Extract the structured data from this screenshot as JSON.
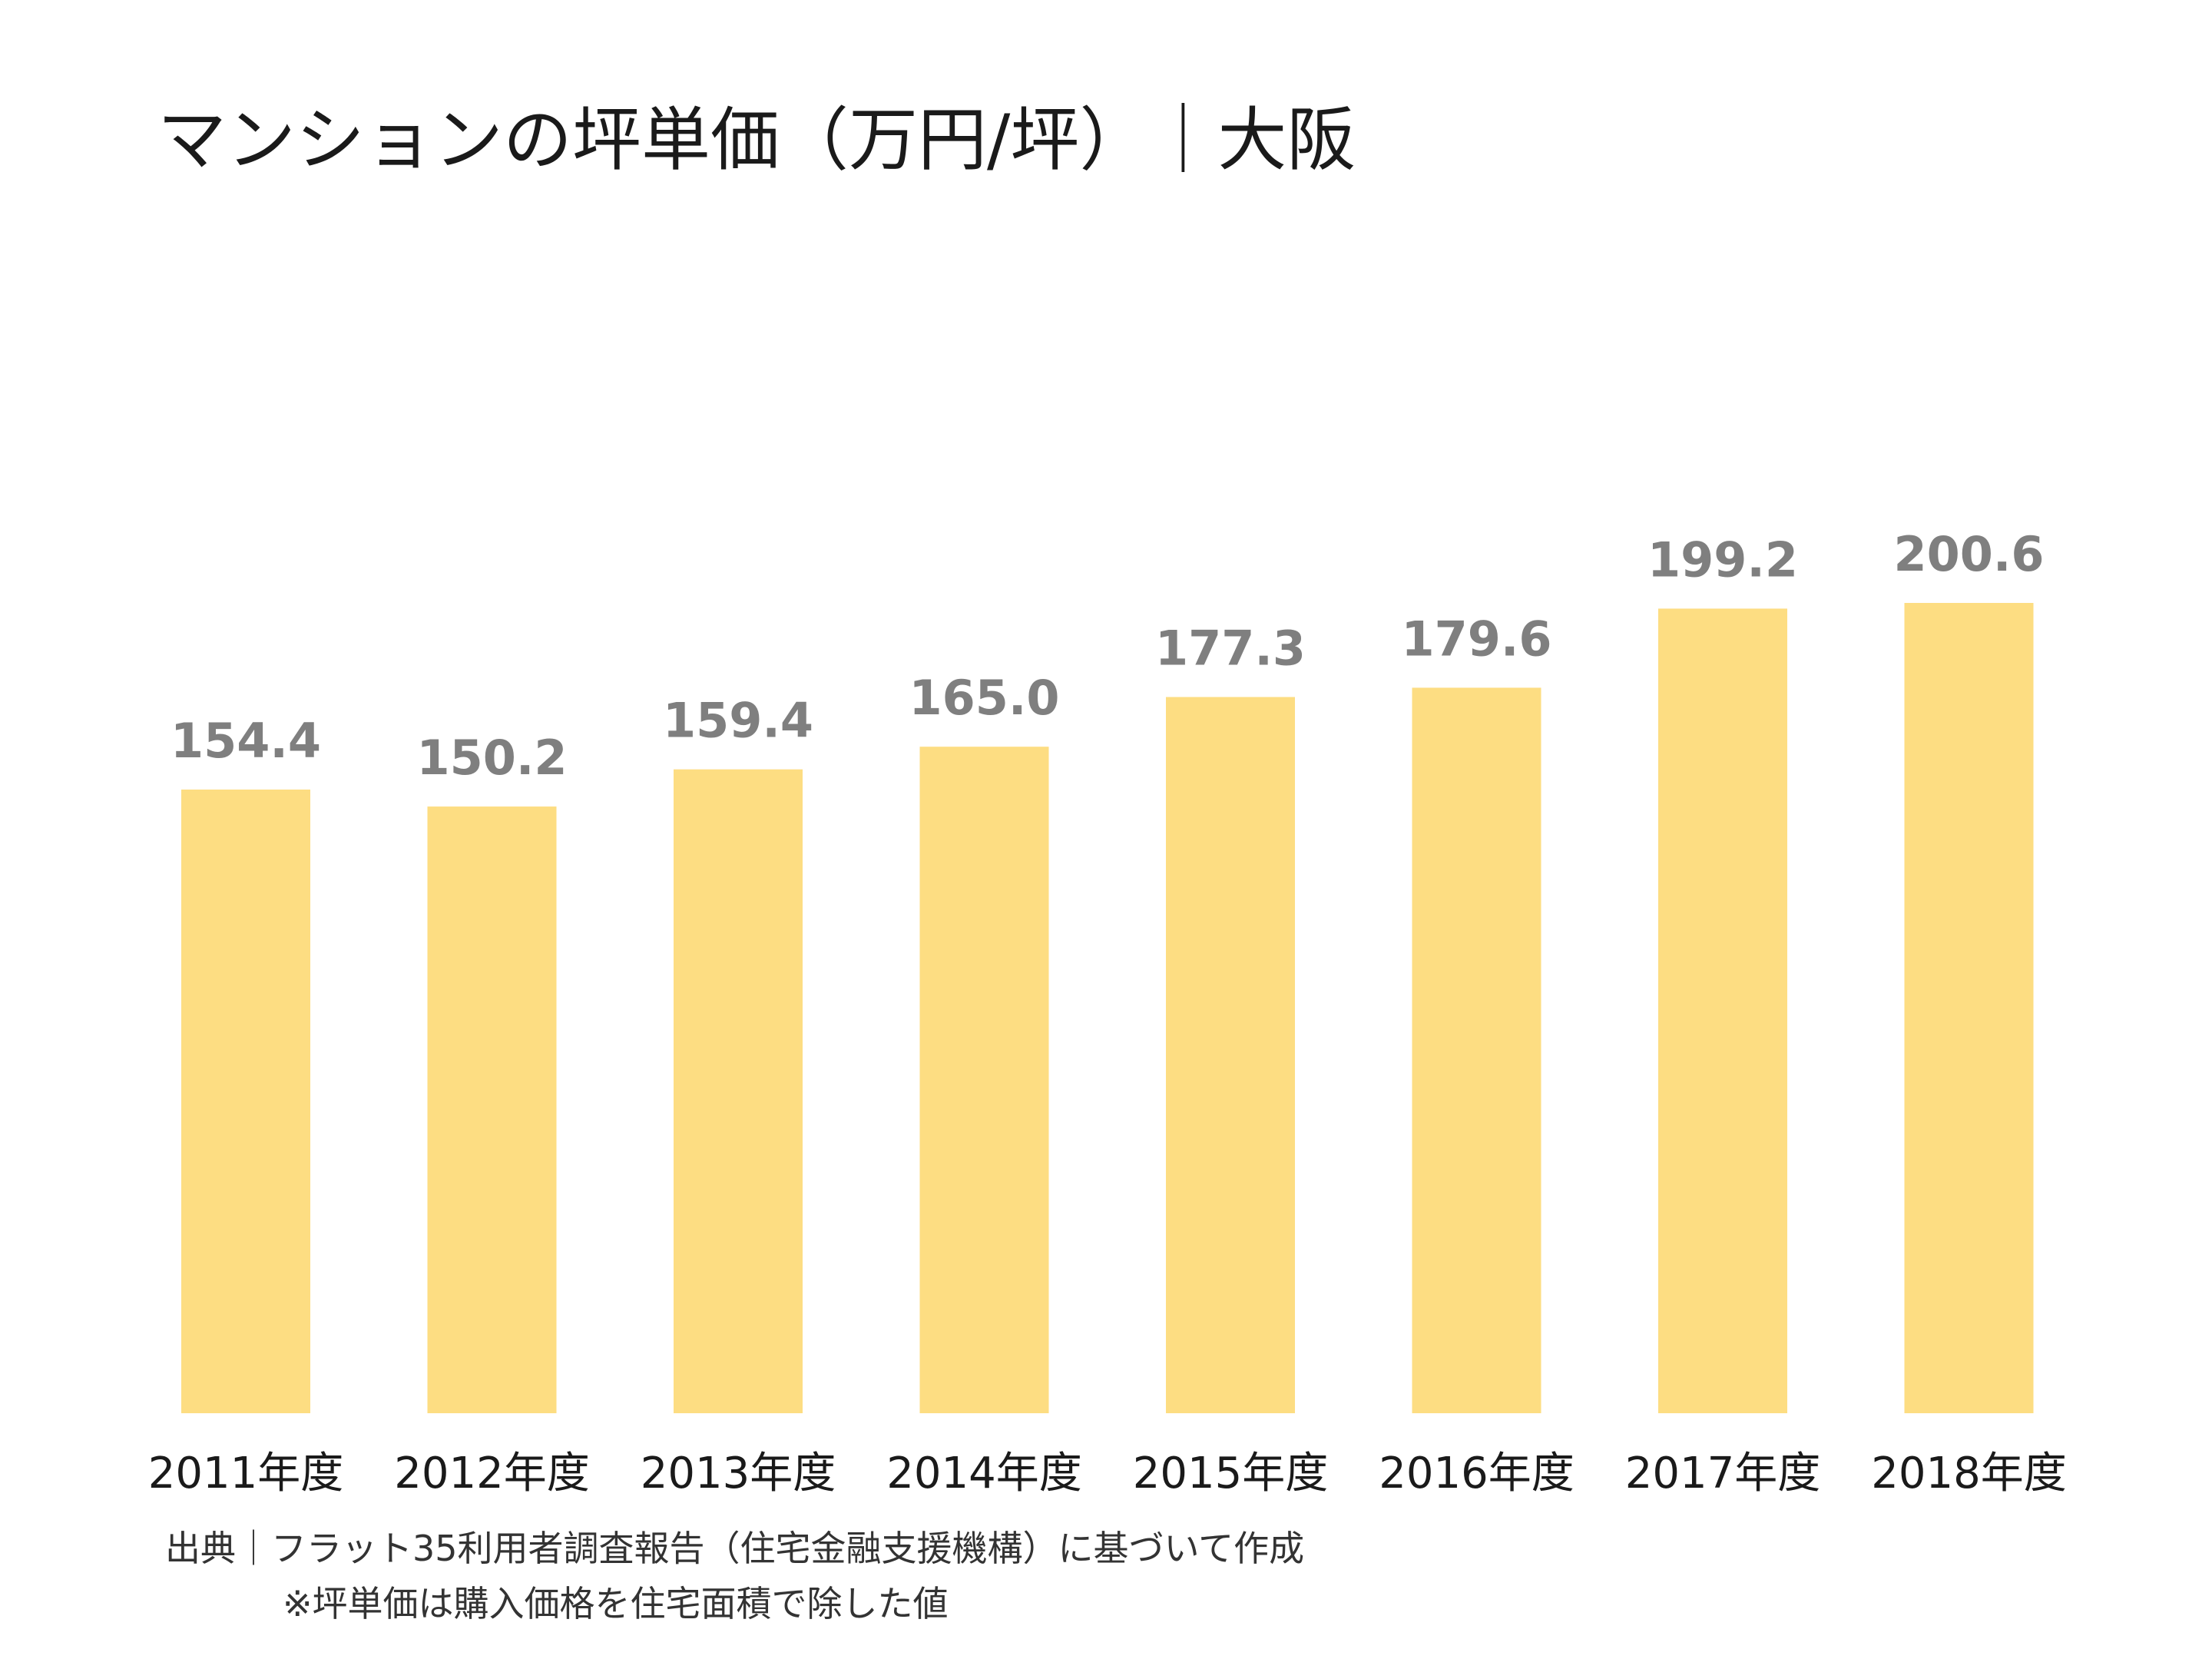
{
  "chart_data": {
    "type": "bar",
    "title": "マンションの坪単価（万円/坪）｜大阪",
    "categories": [
      "2011年度",
      "2012年度",
      "2013年度",
      "2014年度",
      "2015年度",
      "2016年度",
      "2017年度",
      "2018年度"
    ],
    "values": [
      154.4,
      150.2,
      159.4,
      165.0,
      177.3,
      179.6,
      199.2,
      200.6
    ],
    "value_labels": [
      "154.4",
      "150.2",
      "159.4",
      "165.0",
      "177.3",
      "179.6",
      "199.2",
      "200.6"
    ],
    "ylim": [
      0,
      210
    ],
    "grid": false,
    "legend": "none",
    "bar_color": "#FDDD82",
    "value_label_color": "#7F7F7F"
  },
  "notes": {
    "source": "出典｜フラット35利用者調査報告（住宅金融支援機構）に基づいて作成",
    "footnote": "※坪単価は購入価格を住宅面積で除した値"
  }
}
